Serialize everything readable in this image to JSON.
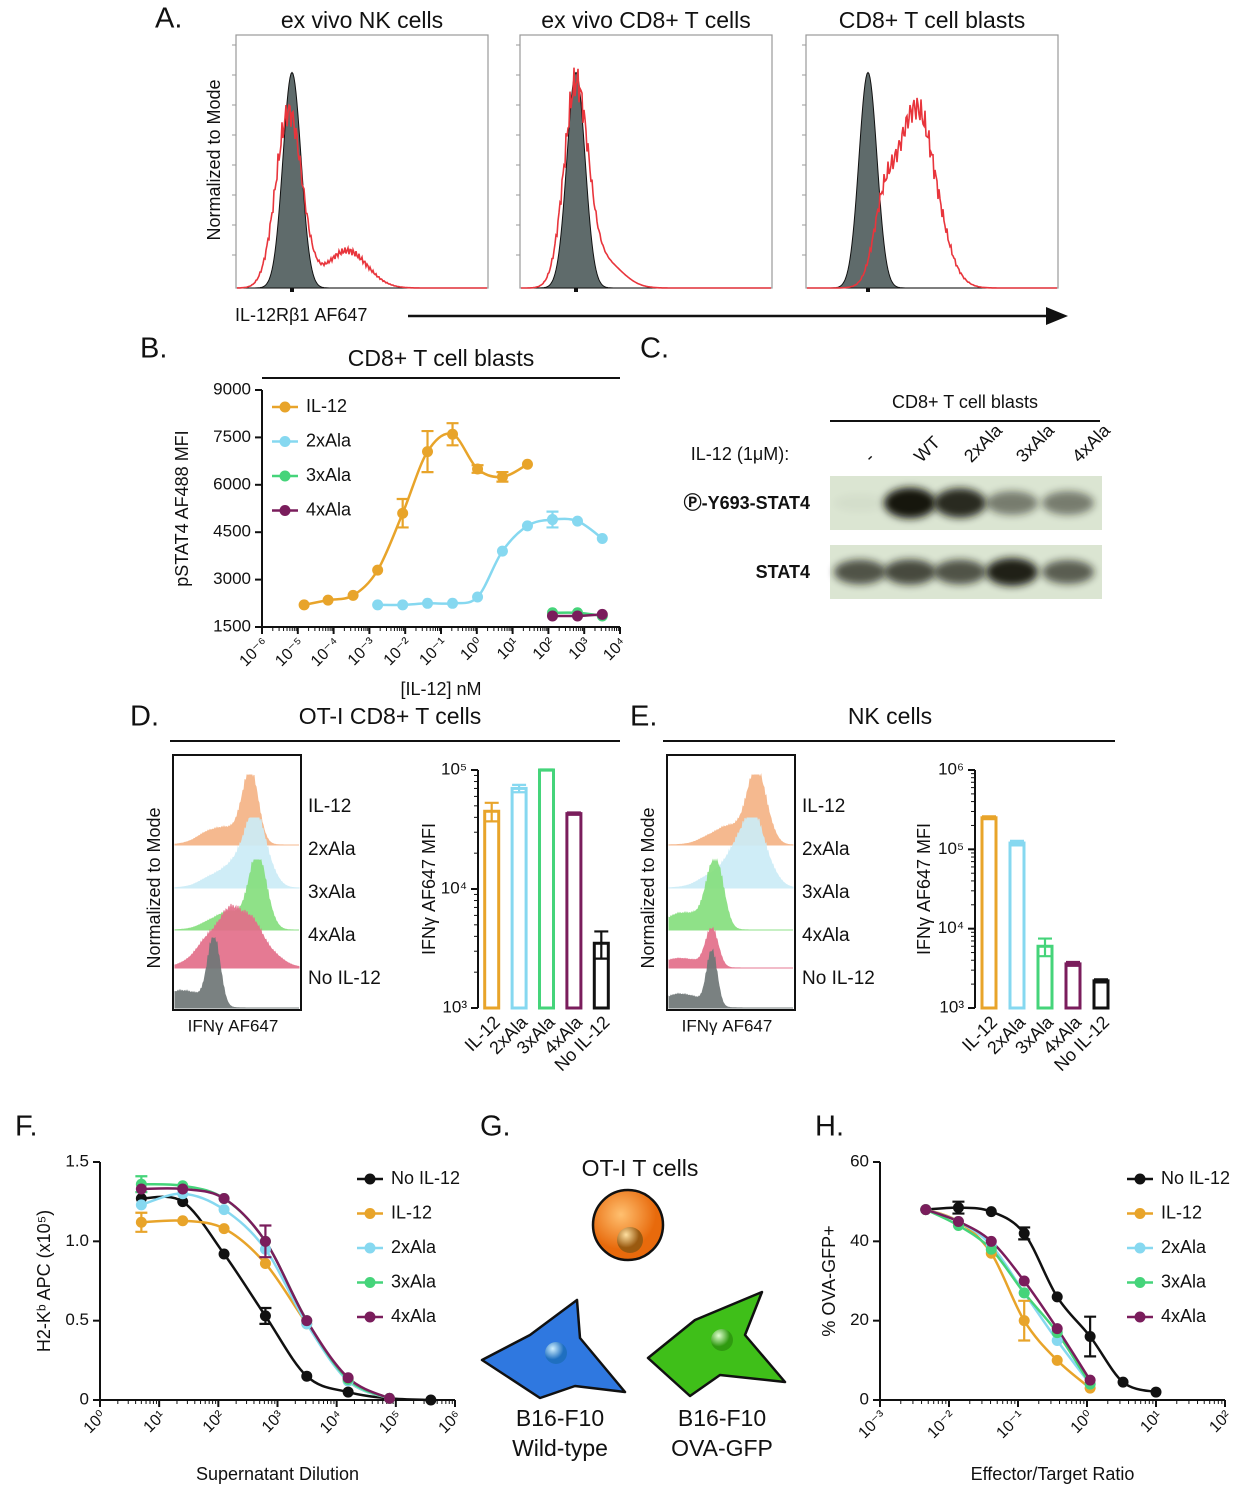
{
  "panel_labels": [
    "A.",
    "B.",
    "C.",
    "D.",
    "E.",
    "F.",
    "G.",
    "H."
  ],
  "panel_A": {
    "titles": [
      "ex vivo NK cells",
      "ex vivo CD8+ T cells",
      "CD8+ T cell blasts"
    ],
    "y_label": "Normalized to Mode",
    "x_label": "IL-12Rβ1 AF647"
  },
  "panel_C": {
    "title": "CD8+ T cell blasts",
    "treatment_label": "IL-12 (1μM):",
    "lanes": [
      "-",
      "WT",
      "2xAla",
      "3xAla",
      "4xAla"
    ],
    "rows": [
      "Ⓟ-Y693-STAT4",
      "STAT4"
    ]
  },
  "panel_D": {
    "title": "OT-I CD8+ T cells",
    "histogram_labels": [
      "IL-12",
      "2xAla",
      "3xAla",
      "4xAla",
      "No IL-12"
    ],
    "y_label": "Normalized to Mode",
    "x_label": "IFNγ AF647"
  },
  "panel_E": {
    "title": "NK cells",
    "histogram_labels": [
      "IL-12",
      "2xAla",
      "3xAla",
      "4xAla",
      "No IL-12"
    ],
    "y_label": "Normalized to Mode",
    "x_label": "IFNγ AF647"
  },
  "panel_G": {
    "title": "OT-I T cells",
    "cells": [
      [
        "B16-F10",
        "Wild-type"
      ],
      [
        "B16-F10",
        "OVA-GFP"
      ]
    ]
  },
  "chart_data": [
    {
      "type": "line",
      "title": "CD8+ T cell blasts",
      "x_label": "[IL-12] nM",
      "y_label": "pSTAT4 AF488 MFI",
      "x_scale": "log",
      "legend": "upper left",
      "xlim": [
        1e-06,
        10000
      ],
      "xticks": [
        {
          "value": 1e-06,
          "label": "10⁻⁶"
        },
        {
          "value": 1e-05,
          "label": "10⁻⁵"
        },
        {
          "value": 0.0001,
          "label": "10⁻⁴"
        },
        {
          "value": 0.001,
          "label": "10⁻³"
        },
        {
          "value": 0.01,
          "label": "10⁻²"
        },
        {
          "value": 0.1,
          "label": "10⁻¹"
        },
        {
          "value": 1,
          "label": "10⁰"
        },
        {
          "value": 10,
          "label": "10¹"
        },
        {
          "value": 100,
          "label": "10²"
        },
        {
          "value": 1000,
          "label": "10³"
        },
        {
          "value": 10000,
          "label": "10⁴"
        }
      ],
      "ylim": [
        1500,
        9000
      ],
      "yticks": [
        1500,
        3000,
        4500,
        6000,
        7500,
        9000
      ],
      "series": [
        {
          "name": "IL-12",
          "color": "#e8a42a",
          "x": [
            1.5e-05,
            7e-05,
            0.00035,
            0.0017,
            0.0085,
            0.042,
            0.21,
            1.05,
            5.2,
            26
          ],
          "values": [
            2200,
            2350,
            2500,
            3300,
            5100,
            7050,
            7600,
            6500,
            6250,
            6650
          ],
          "errors": [
            null,
            null,
            null,
            null,
            450,
            650,
            350,
            120,
            150,
            null
          ]
        },
        {
          "name": "2xAla",
          "color": "#86d8f0",
          "x": [
            0.0017,
            0.0085,
            0.042,
            0.21,
            1.05,
            5.2,
            26,
            130,
            650,
            3200
          ],
          "values": [
            2200,
            2200,
            2250,
            2250,
            2450,
            3900,
            4700,
            4900,
            4850,
            4300
          ],
          "errors": [
            null,
            null,
            null,
            null,
            null,
            null,
            null,
            250,
            null,
            null
          ]
        },
        {
          "name": "3xAla",
          "color": "#45d47a",
          "x": [
            130,
            650,
            3200
          ],
          "values": [
            1950,
            1950,
            1850
          ]
        },
        {
          "name": "4xAla",
          "color": "#7a1d5c",
          "x": [
            130,
            650,
            3200
          ],
          "values": [
            1850,
            1850,
            1900
          ]
        }
      ]
    },
    {
      "type": "bar",
      "y_label": "IFNγ AF647 MFI",
      "y_scale": "log",
      "ylim": [
        1000,
        100000
      ],
      "yticks": [
        {
          "value": 1000,
          "label": "10³"
        },
        {
          "value": 10000,
          "label": "10⁴"
        },
        {
          "value": 100000,
          "label": "10⁵"
        }
      ],
      "categories": [
        "IL-12",
        "2xAla",
        "3xAla",
        "4xAla",
        "No IL-12"
      ],
      "colors": [
        "#e8a42a",
        "#86d8f0",
        "#45d47a",
        "#7a1d5c",
        "#111111"
      ],
      "values": [
        45000,
        70000,
        100000,
        43000,
        3500
      ],
      "errors": [
        8000,
        5000,
        1000,
        1000,
        900
      ]
    },
    {
      "type": "bar",
      "y_label": "IFNγ AF647 MFI",
      "y_scale": "log",
      "ylim": [
        1000,
        1000000
      ],
      "yticks": [
        {
          "value": 1000,
          "label": "10³"
        },
        {
          "value": 10000,
          "label": "10⁴"
        },
        {
          "value": 100000,
          "label": "10⁵"
        },
        {
          "value": 1000000,
          "label": "10⁶"
        }
      ],
      "categories": [
        "IL-12",
        "2xAla",
        "3xAla",
        "4xAla",
        "No IL-12"
      ],
      "colors": [
        "#e8a42a",
        "#86d8f0",
        "#45d47a",
        "#7a1d5c",
        "#111111"
      ],
      "values": [
        250000,
        120000,
        6000,
        3600,
        2200
      ],
      "errors": [
        10000,
        8000,
        1500,
        200,
        100
      ]
    },
    {
      "type": "line",
      "x_label": "Supernatant Dilution",
      "y_label": "H2-Kᵇ APC (x10⁵)",
      "x_scale": "log",
      "legend": "upper right",
      "xlim": [
        1,
        1000000
      ],
      "xticks": [
        {
          "value": 1,
          "label": "10⁰"
        },
        {
          "value": 10,
          "label": "10¹"
        },
        {
          "value": 100,
          "label": "10²"
        },
        {
          "value": 1000,
          "label": "10³"
        },
        {
          "value": 10000,
          "label": "10⁴"
        },
        {
          "value": 100000,
          "label": "10⁵"
        },
        {
          "value": 1000000,
          "label": "10⁶"
        }
      ],
      "ylim": [
        0,
        1.5
      ],
      "yticks": [
        0,
        0.5,
        {
          "value": 1,
          "label": "1.0"
        },
        1.5
      ],
      "series": [
        {
          "name": "No IL-12",
          "color": "#111111",
          "x": [
            5,
            25,
            125,
            625,
            3125,
            15625,
            78125,
            390625
          ],
          "values": [
            1.27,
            1.25,
            0.92,
            0.53,
            0.15,
            0.05,
            0.01,
            0
          ],
          "errors": [
            null,
            null,
            null,
            0.05,
            null,
            null,
            null,
            null
          ]
        },
        {
          "name": "IL-12",
          "color": "#e8a42a",
          "x": [
            5,
            25,
            125,
            625,
            3125,
            15625,
            78125,
            390625
          ],
          "values": [
            1.12,
            1.13,
            1.08,
            0.86,
            0.48,
            0.12,
            0.01,
            null
          ],
          "errors": [
            0.06,
            null,
            null,
            null,
            null,
            null,
            null,
            null
          ]
        },
        {
          "name": "2xAla",
          "color": "#86d8f0",
          "x": [
            5,
            25,
            125,
            625,
            3125,
            15625,
            78125,
            390625
          ],
          "values": [
            1.23,
            1.3,
            1.2,
            0.95,
            0.48,
            0.12,
            0.01,
            null
          ]
        },
        {
          "name": "3xAla",
          "color": "#45d47a",
          "x": [
            5,
            25,
            125,
            625,
            3125,
            15625,
            78125,
            390625
          ],
          "values": [
            1.36,
            1.35,
            1.27,
            1,
            0.5,
            0.13,
            0.01,
            null
          ],
          "errors": [
            0.05,
            null,
            null,
            null,
            null,
            null,
            null,
            null
          ]
        },
        {
          "name": "4xAla",
          "color": "#7a1d5c",
          "x": [
            5,
            25,
            125,
            625,
            3125,
            15625,
            78125,
            390625
          ],
          "values": [
            1.33,
            1.33,
            1.27,
            1,
            0.5,
            0.14,
            0.01,
            null
          ],
          "errors": [
            null,
            null,
            null,
            0.1,
            null,
            null,
            null,
            null
          ]
        }
      ]
    },
    {
      "type": "line",
      "x_label": "Effector/Target Ratio",
      "y_label": "% OVA-GFP+",
      "x_scale": "log",
      "legend": "upper right",
      "xlim": [
        0.001,
        100
      ],
      "xticks": [
        {
          "value": 0.001,
          "label": "10⁻³"
        },
        {
          "value": 0.01,
          "label": "10⁻²"
        },
        {
          "value": 0.1,
          "label": "10⁻¹"
        },
        {
          "value": 1,
          "label": "10⁰"
        },
        {
          "value": 10,
          "label": "10¹"
        },
        {
          "value": 100,
          "label": "10²"
        }
      ],
      "ylim": [
        0,
        60
      ],
      "yticks": [
        0,
        20,
        40,
        60
      ],
      "series": [
        {
          "name": "No IL-12",
          "color": "#111111",
          "x": [
            0.0046,
            0.0137,
            0.041,
            0.123,
            0.37,
            1.11,
            3.33,
            10
          ],
          "values": [
            48,
            48.5,
            47.5,
            42,
            26,
            16,
            4.5,
            2
          ],
          "errors": [
            null,
            1.5,
            null,
            1.5,
            null,
            5,
            null,
            null
          ]
        },
        {
          "name": "IL-12",
          "color": "#e8a42a",
          "x": [
            0.0046,
            0.0137,
            0.041,
            0.123,
            0.37,
            1.11,
            3.33,
            10
          ],
          "values": [
            48,
            45,
            37,
            20,
            10,
            3,
            null,
            null
          ],
          "errors": [
            null,
            null,
            null,
            5,
            null,
            null,
            null,
            null
          ]
        },
        {
          "name": "2xAla",
          "color": "#86d8f0",
          "x": [
            0.0046,
            0.0137,
            0.041,
            0.123,
            0.37,
            1.11,
            3.33,
            10
          ],
          "values": [
            48,
            45,
            39,
            27,
            15,
            4,
            null,
            null
          ]
        },
        {
          "name": "3xAla",
          "color": "#45d47a",
          "x": [
            0.0046,
            0.0137,
            0.041,
            0.123,
            0.37,
            1.11,
            3.33,
            10
          ],
          "values": [
            48,
            44,
            38,
            27,
            17,
            4,
            null,
            null
          ]
        },
        {
          "name": "4xAla",
          "color": "#7a1d5c",
          "x": [
            0.0046,
            0.0137,
            0.041,
            0.123,
            0.37,
            1.11,
            3.33,
            10
          ],
          "values": [
            48,
            45,
            40,
            30,
            18,
            5,
            null,
            null
          ]
        }
      ]
    }
  ]
}
